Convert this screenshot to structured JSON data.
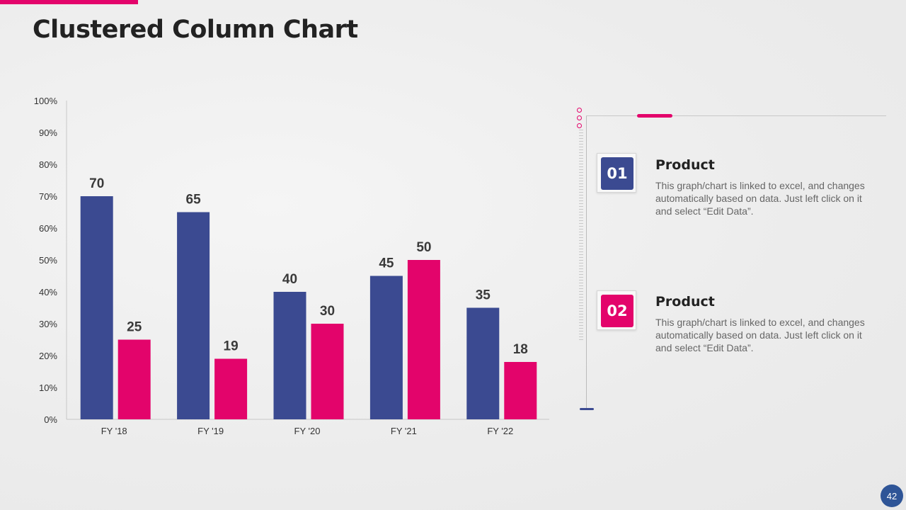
{
  "title": "Clustered Column Chart",
  "colors": {
    "series1": "#3b4a91",
    "series2": "#e3046b",
    "accent": "#e3046b",
    "badge": "#2f5597"
  },
  "chart_data": {
    "type": "bar",
    "categories": [
      "FY '18",
      "FY '19",
      "FY '20",
      "FY '21",
      "FY '22"
    ],
    "series": [
      {
        "name": "Product 01",
        "values": [
          70,
          65,
          40,
          45,
          35
        ]
      },
      {
        "name": "Product 02",
        "values": [
          25,
          19,
          30,
          50,
          18
        ]
      }
    ],
    "ylim": [
      0,
      100
    ],
    "yticks": [
      "0%",
      "10%",
      "20%",
      "30%",
      "40%",
      "50%",
      "60%",
      "70%",
      "80%",
      "90%",
      "100%"
    ],
    "ytick_values": [
      0,
      10,
      20,
      30,
      40,
      50,
      60,
      70,
      80,
      90,
      100
    ],
    "xlabel": "",
    "ylabel": "",
    "grid": false
  },
  "legend_items": [
    {
      "number": "01",
      "title": "Product",
      "description": "This graph/chart is linked to excel, and changes automatically based on data. Just left click on it and select “Edit Data”."
    },
    {
      "number": "02",
      "title": "Product",
      "description": "This graph/chart is linked to excel, and changes automatically based on data. Just left click on it and select “Edit Data”."
    }
  ],
  "page_number": "42"
}
